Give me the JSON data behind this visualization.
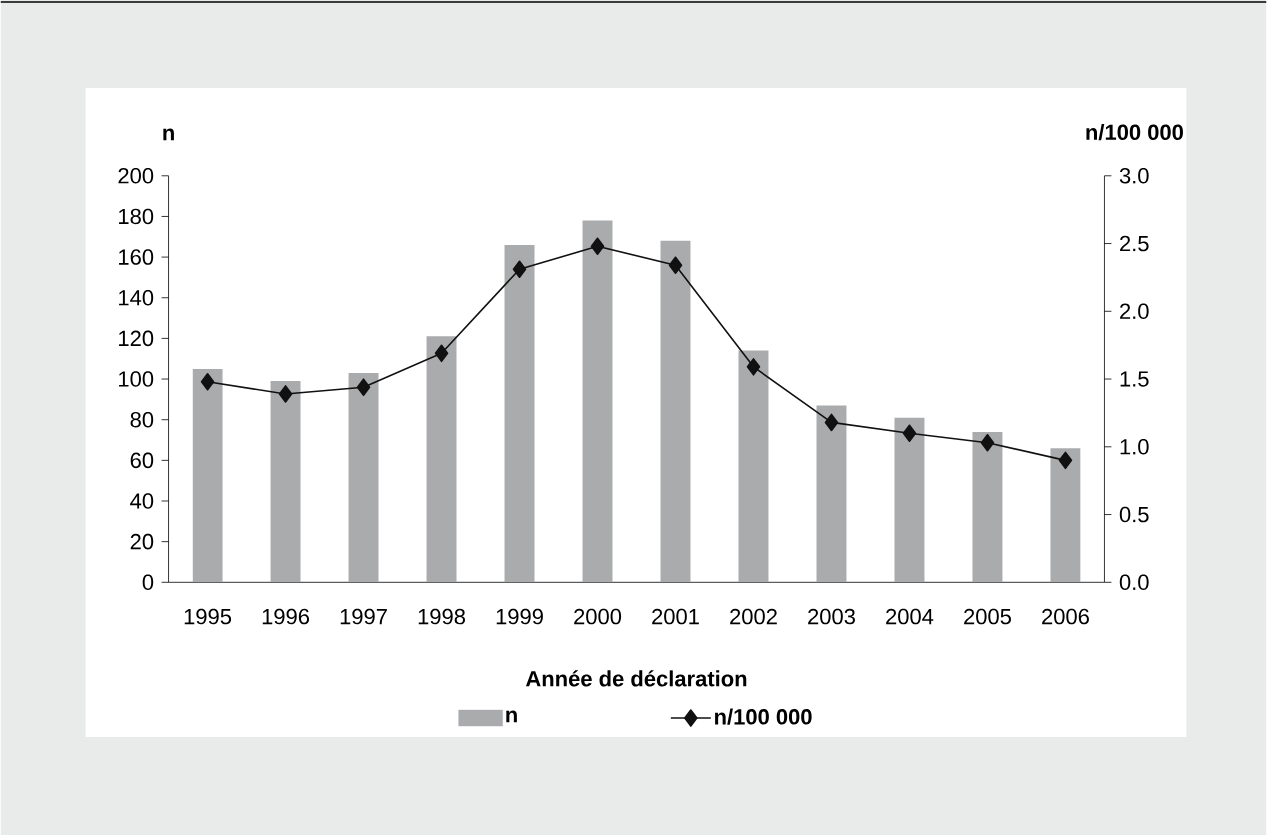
{
  "chart_data": {
    "type": "bar",
    "xlabel": "Année de déclaration",
    "ylabel": "n",
    "y2label": "n/100 000",
    "categories": [
      "1995",
      "1996",
      "1997",
      "1998",
      "1999",
      "2000",
      "2001",
      "2002",
      "2003",
      "2004",
      "2005",
      "2006"
    ],
    "series": [
      {
        "name": "n",
        "color": "#aaabad",
        "values": [
          105,
          99,
          103,
          121,
          166,
          178,
          168,
          114,
          87,
          81,
          74,
          66
        ]
      },
      {
        "name": "n/100 000",
        "type": "line",
        "axis": "y2",
        "color": "#111111",
        "marker": "diamond",
        "values": [
          1.48,
          1.39,
          1.44,
          1.69,
          2.31,
          2.48,
          2.34,
          1.59,
          1.18,
          1.1,
          1.03,
          0.9
        ]
      }
    ],
    "ylim": [
      0,
      200
    ],
    "yticks": [
      0,
      20,
      40,
      60,
      80,
      100,
      120,
      140,
      160,
      180,
      200
    ],
    "y2lim": [
      0,
      3
    ],
    "y2ticks": [
      {
        "value": 0,
        "label": "0.0"
      },
      {
        "value": 0.5,
        "label": "0.5"
      },
      {
        "value": 1,
        "label": "1.0"
      },
      {
        "value": 1.5,
        "label": "1.5"
      },
      {
        "value": 2,
        "label": "2.0"
      },
      {
        "value": 2.5,
        "label": "2.5"
      },
      {
        "value": 3,
        "label": "3.0"
      }
    ],
    "legend": "bottom",
    "grid": false
  }
}
